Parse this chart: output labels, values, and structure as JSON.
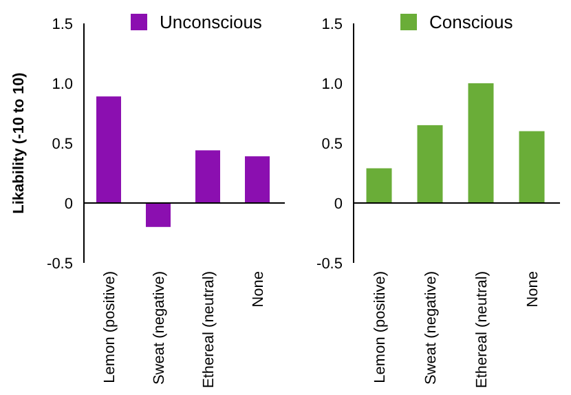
{
  "chart_data": [
    {
      "type": "bar",
      "ylabel": "Likability (-10 to 10)",
      "categories": [
        "Lemon (positive)",
        "Sweat (negative)",
        "Ethereal (neutral)",
        "None"
      ],
      "series": [
        {
          "name": "Unconscious",
          "color": "#8b0fb0",
          "values": [
            0.89,
            -0.2,
            0.44,
            0.39
          ]
        }
      ],
      "ylim": [
        -0.5,
        1.5
      ],
      "yticks": [
        -0.5,
        0,
        0.5,
        {
          "value": 1,
          "label": "1.0"
        },
        1.5
      ],
      "legend": "top right",
      "grid": false,
      "ref_lines": [
        {
          "axis": "y",
          "value": 0
        }
      ]
    },
    {
      "type": "bar",
      "categories": [
        "Lemon (positive)",
        "Sweat (negative)",
        "Ethereal (neutral)",
        "None"
      ],
      "series": [
        {
          "name": "Conscious",
          "color": "#6aad38",
          "values": [
            0.29,
            0.65,
            1.0,
            0.6
          ]
        }
      ],
      "ylim": [
        -0.5,
        1.5
      ],
      "yticks": [
        -0.5,
        0,
        0.5,
        {
          "value": 1,
          "label": "1.0"
        },
        1.5
      ],
      "legend": "top right",
      "grid": false,
      "ref_lines": [
        {
          "axis": "y",
          "value": 0
        }
      ]
    }
  ]
}
